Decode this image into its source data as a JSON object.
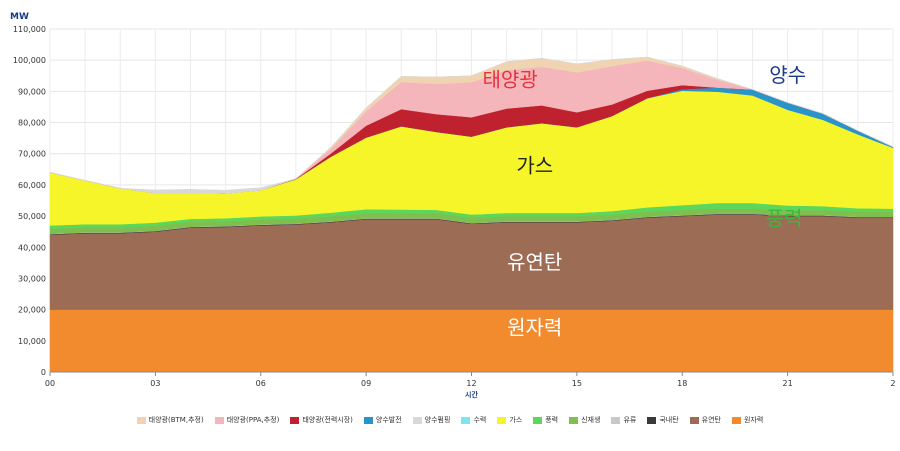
{
  "chart_data": {
    "type": "area",
    "ylabel": "MW",
    "xlabel": "시간",
    "ylim": [
      0,
      110000
    ],
    "yticks": [
      "0",
      "10,000",
      "20,000",
      "30,000",
      "40,000",
      "50,000",
      "60,000",
      "70,000",
      "80,000",
      "90,000",
      "100,000",
      "110,000"
    ],
    "xticks": [
      "00",
      "03",
      "06",
      "09",
      "12",
      "15",
      "18",
      "21",
      "2"
    ],
    "x": [
      0,
      1,
      2,
      3,
      4,
      5,
      6,
      7,
      8,
      9,
      10,
      11,
      12,
      13,
      14,
      15,
      16,
      17,
      18,
      19,
      20,
      21,
      22,
      23,
      24
    ],
    "series": [
      {
        "name": "원자력",
        "color": "#f28a2e",
        "values": [
          20000,
          20000,
          20000,
          20000,
          20000,
          20000,
          20000,
          20000,
          20000,
          20000,
          20000,
          20000,
          20000,
          20000,
          20000,
          20000,
          20000,
          20000,
          20000,
          20000,
          20000,
          20000,
          20000,
          20000,
          20000
        ]
      },
      {
        "name": "유연탄",
        "color": "#9c6c55",
        "values": [
          24000,
          24500,
          24500,
          25000,
          26300,
          26500,
          27000,
          27300,
          28000,
          29000,
          29000,
          29000,
          27500,
          28000,
          28000,
          28000,
          28500,
          29500,
          30000,
          30500,
          30500,
          30000,
          30000,
          29500,
          29500
        ]
      },
      {
        "name": "국내탄",
        "color": "#3a3a3a",
        "values": [
          200,
          200,
          200,
          200,
          200,
          200,
          200,
          200,
          200,
          200,
          200,
          200,
          200,
          200,
          200,
          200,
          200,
          200,
          200,
          200,
          200,
          200,
          200,
          200,
          200
        ]
      },
      {
        "name": "유류",
        "color": "#c8c8c8",
        "values": [
          100,
          100,
          100,
          100,
          100,
          100,
          100,
          100,
          100,
          100,
          100,
          100,
          100,
          100,
          100,
          100,
          100,
          100,
          100,
          100,
          100,
          100,
          100,
          100,
          100
        ]
      },
      {
        "name": "신재생",
        "color": "#7fbf4d",
        "values": [
          1600,
          1600,
          1600,
          1600,
          1600,
          1600,
          1600,
          1600,
          1600,
          1600,
          1600,
          1600,
          1600,
          1600,
          1600,
          1600,
          1600,
          1600,
          1600,
          1600,
          1600,
          1600,
          1600,
          1600,
          1600
        ]
      },
      {
        "name": "풍력",
        "color": "#5cd65c",
        "values": [
          1100,
          1000,
          1000,
          1000,
          900,
          900,
          1000,
          1000,
          1200,
          1300,
          1200,
          1100,
          1100,
          1100,
          1100,
          1100,
          1200,
          1400,
          1600,
          1800,
          1800,
          1500,
          1300,
          1100,
          1000
        ]
      },
      {
        "name": "가스",
        "color": "#f5f52a",
        "values": [
          17000,
          14000,
          11500,
          9500,
          8300,
          8000,
          8400,
          11600,
          18000,
          23000,
          26700,
          25000,
          25000,
          27500,
          28800,
          27500,
          30500,
          35000,
          36700,
          35700,
          34500,
          30700,
          27700,
          23700,
          19500
        ]
      },
      {
        "name": "수력",
        "color": "#7ce6f0",
        "values": [
          0,
          0,
          0,
          0,
          0,
          0,
          0,
          0,
          0,
          0,
          0,
          0,
          0,
          0,
          0,
          0,
          0,
          0,
          0,
          0,
          0,
          0,
          0,
          0,
          0
        ]
      },
      {
        "name": "양수발전",
        "color": "#2a93c8",
        "values": [
          0,
          0,
          0,
          0,
          0,
          0,
          0,
          0,
          0,
          0,
          0,
          0,
          0,
          0,
          0,
          0,
          0,
          0,
          500,
          1300,
          1900,
          2300,
          2000,
          1200,
          300
        ]
      },
      {
        "name": "태양광(전력시장)",
        "color": "#c0212e",
        "values": [
          0,
          0,
          0,
          0,
          0,
          0,
          0,
          100,
          1000,
          3800,
          5500,
          5700,
          6200,
          6000,
          5700,
          4800,
          3700,
          2400,
          1300,
          0,
          0,
          0,
          0,
          0,
          0
        ]
      },
      {
        "name": "태양광(PPA,추정)",
        "color": "#f4b6bb",
        "values": [
          0,
          0,
          0,
          0,
          0,
          0,
          0,
          100,
          1500,
          4600,
          8700,
          9700,
          11200,
          12300,
          12400,
          12800,
          12300,
          9700,
          5500,
          2500,
          0,
          0,
          0,
          0,
          0
        ]
      },
      {
        "name": "태양광(BTM,추정)",
        "color": "#f0d4b2",
        "values": [
          0,
          0,
          0,
          0,
          0,
          0,
          0,
          0,
          500,
          1100,
          1800,
          2200,
          2100,
          2700,
          2700,
          2700,
          2100,
          1100,
          600,
          400,
          0,
          0,
          0,
          0,
          0
        ]
      },
      {
        "name": "양수펌핑",
        "color": "#d8d8d8",
        "values": [
          0,
          0,
          0,
          1000,
          1200,
          1000,
          800,
          0,
          0,
          0,
          0,
          0,
          0,
          0,
          0,
          0,
          0,
          0,
          0,
          0,
          0,
          0,
          0,
          0,
          0
        ]
      }
    ],
    "legend_order": [
      "태양광(BTM,추정)",
      "태양광(PPA,추정)",
      "태양광(전력시장)",
      "양수발전",
      "양수펌핑",
      "수력",
      "가스",
      "풍력",
      "신재생",
      "유류",
      "국내탄",
      "유연탄",
      "원자력"
    ],
    "annotations": [
      {
        "text": "태양광",
        "color": "#e8313c",
        "x": 13.1,
        "y": 91500
      },
      {
        "text": "양수",
        "color": "#1a3b8c",
        "x": 21.0,
        "y": 93000
      },
      {
        "text": "가스",
        "color": "#222222",
        "x": 13.8,
        "y": 64000
      },
      {
        "text": "풍력",
        "color": "#3db83d",
        "x": 20.9,
        "y": 47000
      },
      {
        "text": "유연탄",
        "color": "#ffffff",
        "x": 13.8,
        "y": 33000
      },
      {
        "text": "원자력",
        "color": "#ffffff",
        "x": 13.8,
        "y": 12000
      }
    ],
    "grid": true,
    "legend_position": "bottom"
  }
}
